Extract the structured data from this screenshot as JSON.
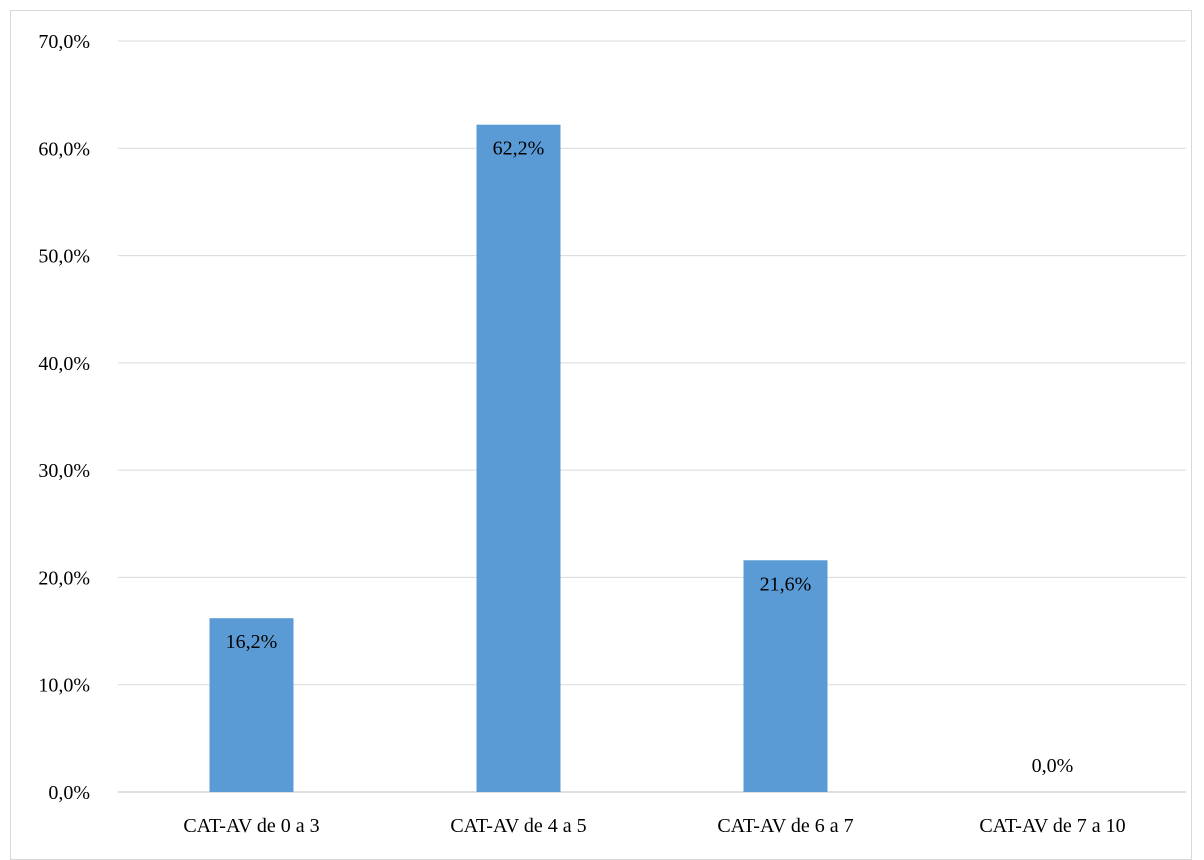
{
  "chart_data": {
    "type": "bar",
    "categories": [
      "CAT-AV de 0 a 3",
      "CAT-AV de 4 a 5",
      "CAT-AV de 6 a 7",
      "CAT-AV de 7 a 10"
    ],
    "values": [
      16.2,
      62.2,
      21.6,
      0.0
    ],
    "data_labels": [
      "16,2%",
      "62,2%",
      "21,6%",
      "0,0%"
    ],
    "y_ticks": [
      "0,0%",
      "10,0%",
      "20,0%",
      "30,0%",
      "40,0%",
      "50,0%",
      "60,0%",
      "70,0%"
    ],
    "ylim": [
      0,
      70
    ],
    "grid": true,
    "legend": "none",
    "bar_color": "#5b9bd5",
    "grid_color": "#d9d9d9"
  }
}
